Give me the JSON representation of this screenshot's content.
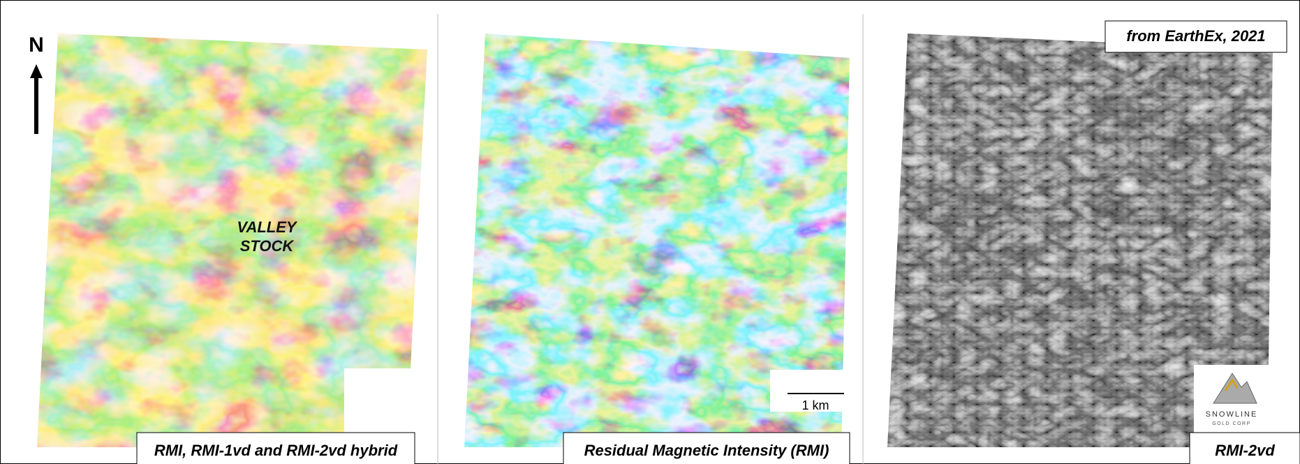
{
  "north": "N",
  "panels": [
    {
      "caption": "RMI, RMI-1vd and RMI-2vd hybrid",
      "label": [
        "VALLEY",
        "STOCK"
      ]
    },
    {
      "caption": "Residual Magnetic Intensity (RMI)",
      "scale_bar": "1 km"
    },
    {
      "caption": "RMI-2vd",
      "source": "from EarthEx, 2021",
      "logo": {
        "name": "SNOWLINE",
        "subtitle": "GOLD CORP"
      }
    }
  ]
}
